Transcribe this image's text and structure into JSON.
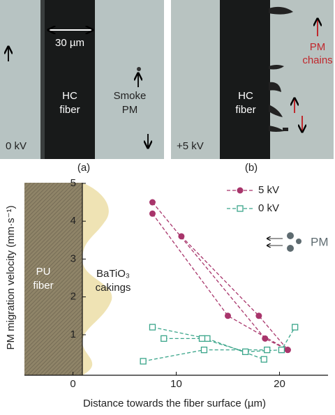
{
  "panels": [
    {
      "label": "(a)",
      "fiber_label": [
        "HC",
        "fiber"
      ],
      "scale": "30 µm",
      "pm_label": [
        "Smoke",
        "PM"
      ],
      "voltage": "0 kV"
    },
    {
      "label": "(b)",
      "fiber_label": [
        "HC",
        "fiber"
      ],
      "chains_label": [
        "PM",
        "chains"
      ],
      "voltage": "+5 kV"
    }
  ],
  "chart_data": {
    "type": "line",
    "xlabel": "Distance towards the fiber surface (µm)",
    "ylabel": "PM migration velocity (mm·s⁻¹)",
    "xlim": [
      -4.7,
      24.7
    ],
    "ylim": [
      -0.07,
      5.09
    ],
    "xticks": [
      0,
      10,
      20
    ],
    "yticks": [
      1,
      2,
      3,
      4,
      5
    ],
    "annotations": {
      "fiber": [
        "PU",
        "fiber"
      ],
      "coating": [
        "BaTiO₃",
        "cakings"
      ],
      "pm": "PM"
    },
    "legend": "upper right",
    "series": [
      {
        "name": "5 kV",
        "color": "#a8356b",
        "marker": "circle",
        "tracks": [
          {
            "x": [
              7.7,
              18.6,
              20.8
            ],
            "y": [
              4.5,
              0.9,
              0.6
            ]
          },
          {
            "x": [
              7.7,
              15,
              20.8
            ],
            "y": [
              4.2,
              1.5,
              0.6
            ]
          },
          {
            "x": [
              10.5,
              18,
              20.8
            ],
            "y": [
              3.6,
              1.5,
              0.6
            ]
          }
        ]
      },
      {
        "name": "0 kV",
        "color": "#3aa58a",
        "marker": "square",
        "tracks": [
          {
            "x": [
              6.8,
              12.7,
              18.8
            ],
            "y": [
              0.3,
              0.6,
              0.6
            ]
          },
          {
            "x": [
              7.7,
              13,
              18.5
            ],
            "y": [
              1.2,
              0.9,
              0.35
            ]
          },
          {
            "x": [
              8.8,
              12.5,
              16.7,
              20.2,
              21.5
            ],
            "y": [
              0.9,
              0.9,
              0.55,
              0.6,
              1.2
            ]
          }
        ]
      }
    ]
  }
}
